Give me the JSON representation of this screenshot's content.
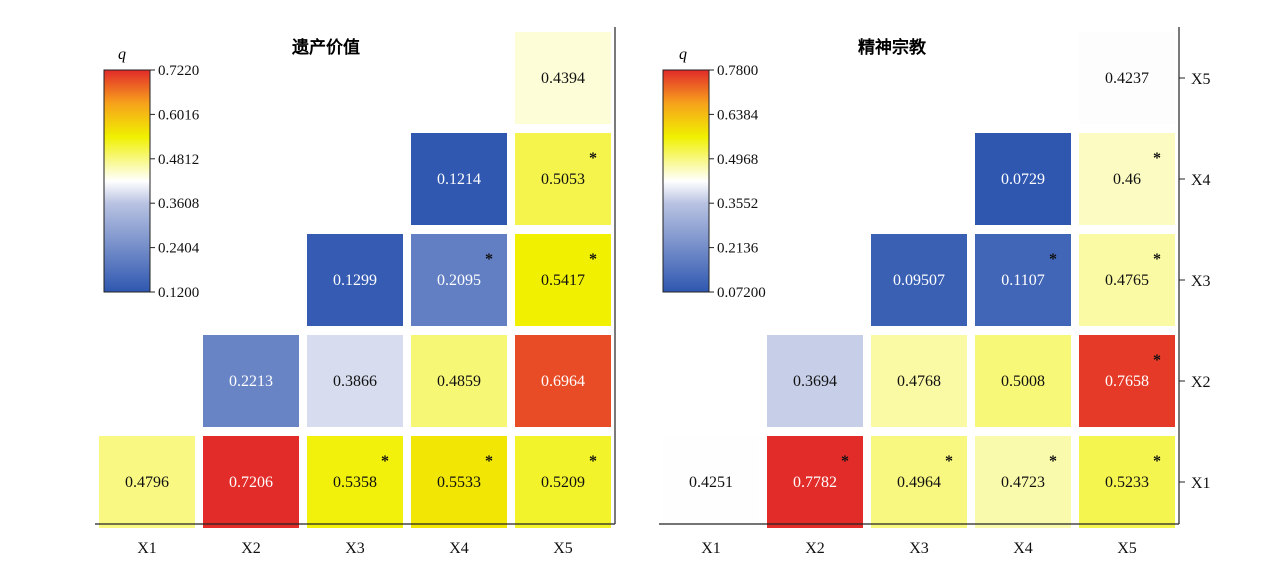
{
  "colors": {
    "low": "#2f57b0",
    "mid": "#ffffff",
    "high_yellow": "#f0f000",
    "high_red": "#e22a2a"
  },
  "chart_data": [
    {
      "type": "heatmap",
      "title": "遗产价值",
      "legend_title": "q",
      "x_labels": [
        "X1",
        "X2",
        "X3",
        "X4",
        "X5"
      ],
      "y_labels": [],
      "colorbar": {
        "min": 0.12,
        "max": 0.722,
        "ticks": [
          "0.7220",
          "0.6016",
          "0.4812",
          "0.3608",
          "0.2404",
          "0.1200"
        ]
      },
      "cells": [
        {
          "x": "X1",
          "y": "X1",
          "value": 0.4796,
          "label": "0.4796",
          "sig": false
        },
        {
          "x": "X2",
          "y": "X1",
          "value": 0.7206,
          "label": "0.7206",
          "sig": false
        },
        {
          "x": "X3",
          "y": "X1",
          "value": 0.5358,
          "label": "0.5358",
          "sig": true
        },
        {
          "x": "X4",
          "y": "X1",
          "value": 0.5533,
          "label": "0.5533",
          "sig": true
        },
        {
          "x": "X5",
          "y": "X1",
          "value": 0.5209,
          "label": "0.5209",
          "sig": true
        },
        {
          "x": "X2",
          "y": "X2",
          "value": 0.2213,
          "label": "0.2213",
          "sig": false
        },
        {
          "x": "X3",
          "y": "X2",
          "value": 0.3866,
          "label": "0.3866",
          "sig": false
        },
        {
          "x": "X4",
          "y": "X2",
          "value": 0.4859,
          "label": "0.4859",
          "sig": false
        },
        {
          "x": "X5",
          "y": "X2",
          "value": 0.6964,
          "label": "0.6964",
          "sig": false
        },
        {
          "x": "X3",
          "y": "X3",
          "value": 0.1299,
          "label": "0.1299",
          "sig": false
        },
        {
          "x": "X4",
          "y": "X3",
          "value": 0.2095,
          "label": "0.2095",
          "sig": true
        },
        {
          "x": "X5",
          "y": "X3",
          "value": 0.5417,
          "label": "0.5417",
          "sig": true
        },
        {
          "x": "X4",
          "y": "X4",
          "value": 0.1214,
          "label": "0.1214",
          "sig": false
        },
        {
          "x": "X5",
          "y": "X4",
          "value": 0.5053,
          "label": "0.5053",
          "sig": true
        },
        {
          "x": "X5",
          "y": "X5",
          "value": 0.4394,
          "label": "0.4394",
          "sig": false
        }
      ]
    },
    {
      "type": "heatmap",
      "title": "精神宗教",
      "legend_title": "q",
      "x_labels": [
        "X1",
        "X2",
        "X3",
        "X4",
        "X5"
      ],
      "y_labels": [
        "X1",
        "X2",
        "X3",
        "X4",
        "X5"
      ],
      "colorbar": {
        "min": 0.072,
        "max": 0.78,
        "ticks": [
          "0.7800",
          "0.6384",
          "0.4968",
          "0.3552",
          "0.2136",
          "0.07200"
        ]
      },
      "cells": [
        {
          "x": "X1",
          "y": "X1",
          "value": 0.4251,
          "label": "0.4251",
          "sig": false
        },
        {
          "x": "X2",
          "y": "X1",
          "value": 0.7782,
          "label": "0.7782",
          "sig": true
        },
        {
          "x": "X3",
          "y": "X1",
          "value": 0.4964,
          "label": "0.4964",
          "sig": true
        },
        {
          "x": "X4",
          "y": "X1",
          "value": 0.4723,
          "label": "0.4723",
          "sig": true
        },
        {
          "x": "X5",
          "y": "X1",
          "value": 0.5233,
          "label": "0.5233",
          "sig": true
        },
        {
          "x": "X2",
          "y": "X2",
          "value": 0.3694,
          "label": "0.3694",
          "sig": false
        },
        {
          "x": "X3",
          "y": "X2",
          "value": 0.4768,
          "label": "0.4768",
          "sig": false
        },
        {
          "x": "X4",
          "y": "X2",
          "value": 0.5008,
          "label": "0.5008",
          "sig": false
        },
        {
          "x": "X5",
          "y": "X2",
          "value": 0.7658,
          "label": "0.7658",
          "sig": true
        },
        {
          "x": "X3",
          "y": "X3",
          "value": 0.09507,
          "label": "0.09507",
          "sig": false
        },
        {
          "x": "X4",
          "y": "X3",
          "value": 0.1107,
          "label": "0.1107",
          "sig": true
        },
        {
          "x": "X5",
          "y": "X3",
          "value": 0.4765,
          "label": "0.4765",
          "sig": true
        },
        {
          "x": "X4",
          "y": "X4",
          "value": 0.0729,
          "label": "0.0729",
          "sig": false
        },
        {
          "x": "X5",
          "y": "X4",
          "value": 0.46,
          "label": "0.46",
          "sig": true
        },
        {
          "x": "X5",
          "y": "X5",
          "value": 0.4237,
          "label": "0.4237",
          "sig": false
        }
      ]
    }
  ]
}
